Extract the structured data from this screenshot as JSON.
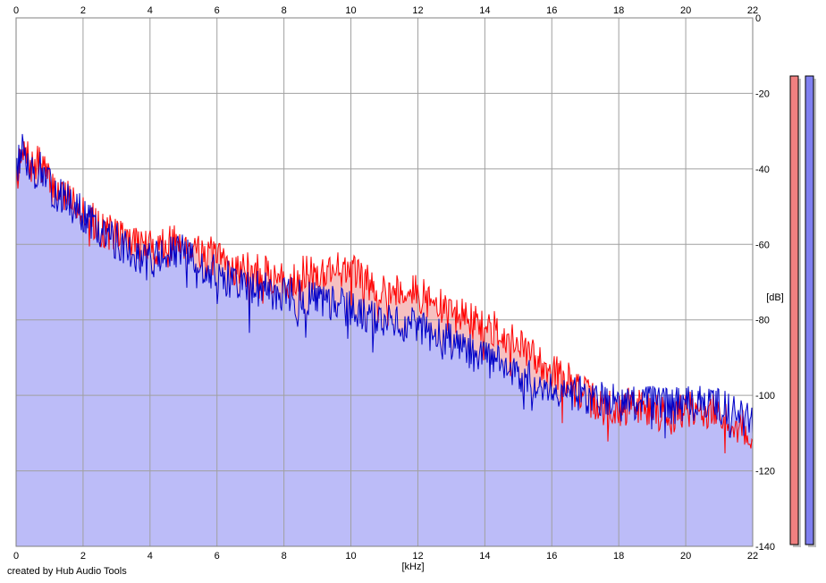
{
  "credit": "created by Hub Audio Tools",
  "chart_data": {
    "type": "area",
    "xlabel": "[kHz]",
    "ylabel": "[dB]",
    "xlim": [
      0,
      22
    ],
    "ylim": [
      -140,
      0
    ],
    "x_ticks": [
      0,
      2,
      4,
      6,
      8,
      10,
      12,
      14,
      16,
      18,
      20,
      22
    ],
    "y_ticks": [
      0,
      -20,
      -40,
      -60,
      -80,
      -100,
      -120,
      -140
    ],
    "grid": true,
    "colors": {
      "red_series": "#ff0000",
      "blue_series": "#0000c8",
      "blue_fill": "#bcbcf8",
      "red_fill": "#f6c0c0",
      "grid": "#a0a0a0",
      "meter_red": "#f08080",
      "meter_blue": "#8080f0"
    },
    "series": [
      {
        "color": "red",
        "x": [
          0.0,
          0.25,
          0.5,
          0.75,
          1.0,
          1.5,
          2.0,
          2.5,
          3.0,
          3.5,
          4.0,
          4.5,
          5.0,
          5.5,
          6.0,
          6.5,
          7.0,
          7.5,
          8.0,
          8.5,
          9.0,
          9.5,
          10.0,
          10.5,
          11.0,
          11.5,
          12.0,
          12.5,
          13.0,
          13.5,
          14.0,
          14.5,
          15.0,
          15.5,
          16.0,
          16.5,
          17.0,
          17.5,
          18.0,
          18.5,
          19.0,
          19.5,
          20.0,
          20.5,
          21.0,
          21.5,
          22.0
        ],
        "values": [
          -42,
          -36,
          -40,
          -38,
          -44,
          -47,
          -50,
          -56,
          -57,
          -59,
          -61,
          -60,
          -59,
          -61,
          -64,
          -66,
          -67,
          -68,
          -70,
          -68,
          -68,
          -66,
          -67,
          -70,
          -72,
          -72,
          -73,
          -76,
          -78,
          -80,
          -82,
          -83,
          -87,
          -90,
          -93,
          -96,
          -100,
          -103,
          -104,
          -102,
          -104,
          -105,
          -104,
          -104,
          -105,
          -108,
          -110
        ]
      },
      {
        "color": "blue",
        "x": [
          0.0,
          0.25,
          0.5,
          0.75,
          1.0,
          1.5,
          2.0,
          2.5,
          3.0,
          3.5,
          4.0,
          4.5,
          5.0,
          5.5,
          6.0,
          6.5,
          7.0,
          7.5,
          8.0,
          8.5,
          9.0,
          9.5,
          10.0,
          10.5,
          11.0,
          11.5,
          12.0,
          12.5,
          13.0,
          13.5,
          14.0,
          14.5,
          15.0,
          15.5,
          16.0,
          16.5,
          17.0,
          17.5,
          18.0,
          18.5,
          19.0,
          19.5,
          20.0,
          20.5,
          21.0,
          21.5,
          22.0
        ],
        "values": [
          -40,
          -34,
          -41,
          -40,
          -45,
          -48,
          -52,
          -57,
          -59,
          -62,
          -64,
          -63,
          -62,
          -66,
          -68,
          -70,
          -71,
          -72,
          -73,
          -74,
          -75,
          -76,
          -77,
          -79,
          -80,
          -81,
          -82,
          -84,
          -86,
          -88,
          -90,
          -92,
          -95,
          -96,
          -98,
          -99,
          -100,
          -101,
          -102,
          -102,
          -102,
          -103,
          -102,
          -102,
          -103,
          -104,
          -106
        ]
      }
    ]
  }
}
